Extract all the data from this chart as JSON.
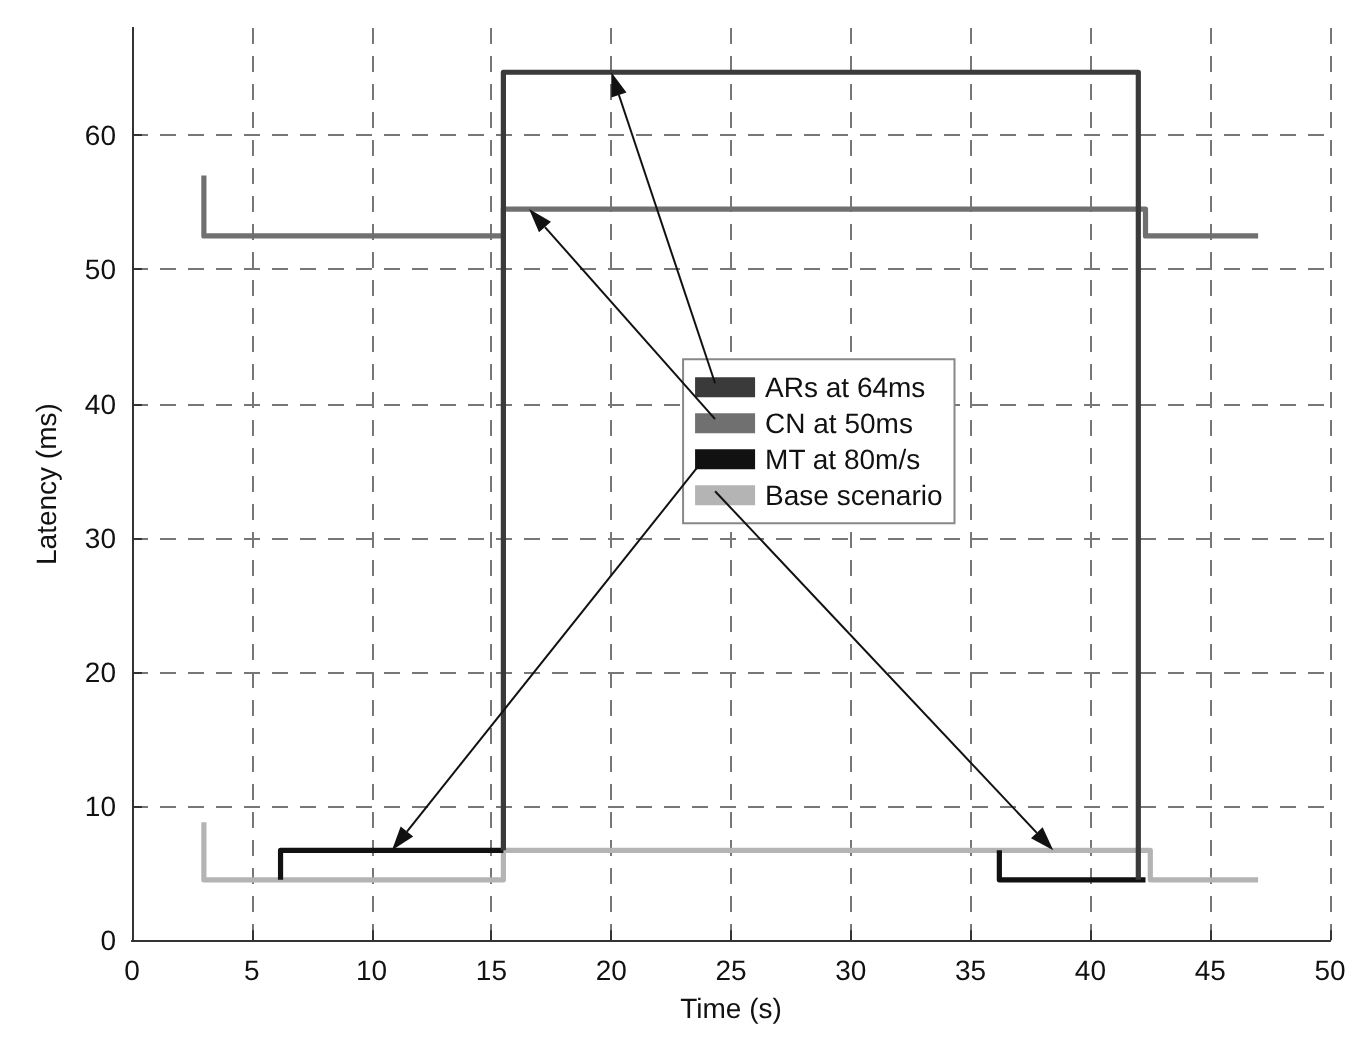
{
  "chart_data": {
    "type": "line",
    "xlabel": "Time (s)",
    "ylabel": "Latency (ms)",
    "xlim": [
      0,
      50
    ],
    "xticks": [
      0,
      5,
      10,
      15,
      20,
      25,
      30,
      35,
      40,
      45,
      50
    ],
    "ylim": [
      0,
      68
    ],
    "yticks": [
      0,
      10,
      20,
      30,
      40,
      50,
      60
    ],
    "grid": true,
    "legend": "center",
    "marker": "none",
    "line_style": "solid",
    "series": [
      {
        "name": "ARs at 64ms",
        "color": "#3a3a3a",
        "x": [
          15.5,
          15.5,
          42,
          42
        ],
        "values": [
          6.7,
          64.7,
          64.7,
          4.5
        ]
      },
      {
        "name": "CN at 50ms",
        "color": "#707070",
        "x": [
          3,
          3,
          15.5,
          15.5,
          42.3,
          42.3,
          47
        ],
        "values": [
          57,
          52.5,
          52.5,
          54.5,
          54.5,
          52.5,
          52.5
        ]
      },
      {
        "name": "MT at 80m/s",
        "color": "#111111",
        "x": [
          6.2,
          6.2,
          15.5,
          25,
          36.2,
          36.2,
          42.3
        ],
        "values": [
          4.5,
          6.7,
          6.7,
          null,
          6.7,
          4.5,
          4.5
        ]
      },
      {
        "name": "Base scenario",
        "color": "#b4b4b4",
        "x": [
          3,
          3,
          15.5,
          15.5,
          42.5,
          42.5,
          47
        ],
        "values": [
          8.8,
          4.5,
          4.5,
          6.7,
          6.7,
          4.5,
          4.5
        ]
      }
    ]
  }
}
